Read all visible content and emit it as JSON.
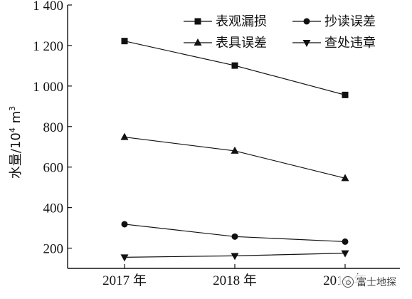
{
  "chart_data": {
    "type": "line",
    "categories": [
      "2017 年",
      "2018 年",
      "2019 年"
    ],
    "series": [
      {
        "name": "表观漏损",
        "marker": "square",
        "values": [
          1222,
          1101,
          956
        ]
      },
      {
        "name": "抄读误差",
        "marker": "circle",
        "values": [
          318,
          257,
          232
        ]
      },
      {
        "name": "表具误差",
        "marker": "triangle-up",
        "values": [
          748,
          680,
          545
        ]
      },
      {
        "name": "查处违章",
        "marker": "triangle-down",
        "values": [
          155,
          162,
          175
        ]
      }
    ],
    "yticks": [
      {
        "value": 200,
        "label": "200"
      },
      {
        "value": 400,
        "label": "400"
      },
      {
        "value": 600,
        "label": "600"
      },
      {
        "value": 800,
        "label": "800"
      },
      {
        "value": 1000,
        "label": "1 000"
      },
      {
        "value": 1200,
        "label": "1 200"
      },
      {
        "value": 1400,
        "label": "1 400"
      }
    ],
    "ylim": [
      100,
      1400
    ],
    "ylabel": {
      "main": "水量/10",
      "exp": "4",
      "unit": " m",
      "unit_exp": "3"
    },
    "xlabel": "",
    "title": "",
    "legend": "top-right, two columns",
    "grid": false,
    "line_color": "#111111"
  },
  "watermark": {
    "text": "富士地探",
    "icon": "wechat-icon"
  }
}
